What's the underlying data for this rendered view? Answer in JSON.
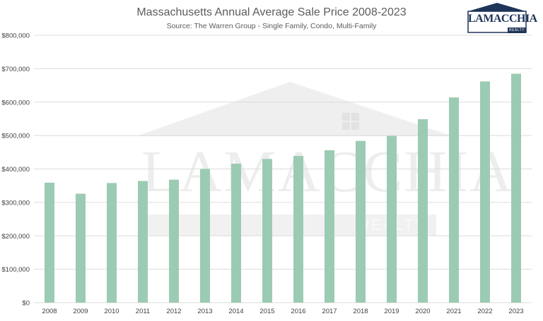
{
  "logo": {
    "name": "LAMACCHIA",
    "sub": "REALTY"
  },
  "watermark": {
    "name": "LAMACCHIA",
    "sub": "REALTY"
  },
  "chart_data": {
    "type": "bar",
    "title": "Massachusetts Annual Average Sale Price 2008-2023",
    "subtitle": "Source: The Warren Group - Single Family, Condo, Multi-Family",
    "categories": [
      "2008",
      "2009",
      "2010",
      "2011",
      "2012",
      "2013",
      "2014",
      "2015",
      "2016",
      "2017",
      "2018",
      "2019",
      "2020",
      "2021",
      "2022",
      "2023"
    ],
    "values": [
      359000,
      326000,
      358000,
      364000,
      368000,
      400000,
      416000,
      430000,
      439000,
      456000,
      484000,
      499000,
      549000,
      614000,
      662000,
      685000
    ],
    "ylim": [
      0,
      800000
    ],
    "yticks": [
      0,
      100000,
      200000,
      300000,
      400000,
      500000,
      600000,
      700000,
      800000
    ],
    "ytick_labels": [
      "$0",
      "$100,000",
      "$200,000",
      "$300,000",
      "$400,000",
      "$500,000",
      "$600,000",
      "$700,000",
      "$800,000"
    ],
    "xlabel": "",
    "ylabel": "",
    "grid": true,
    "legend": "none",
    "colors": {
      "bar": "#9ccbb3",
      "grid": "#dcdcdc",
      "text": "#404040",
      "title": "#5c5c5c"
    }
  }
}
